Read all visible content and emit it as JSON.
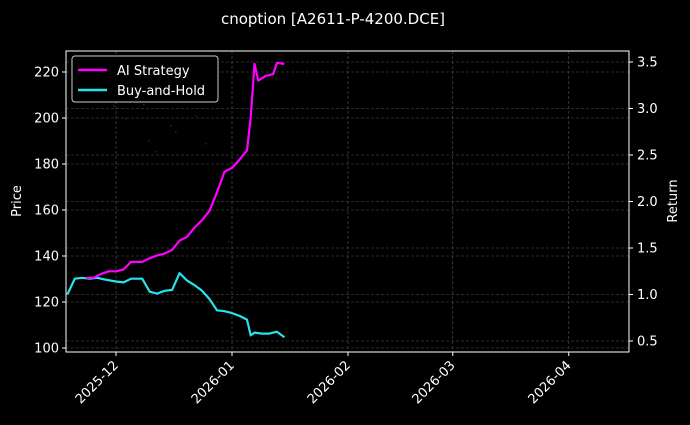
{
  "chart_data": {
    "type": "line",
    "title": "cnoption [A2611-P-4200.DCE]",
    "xlabel": "",
    "ylabel": "Price",
    "y2label": "Return",
    "ylim": [
      99,
      229
    ],
    "y2lim": [
      0.39,
      3.63
    ],
    "yticks": [
      100,
      120,
      140,
      160,
      180,
      200,
      220
    ],
    "y2ticks": [
      0.5,
      1.0,
      1.5,
      2.0,
      2.5,
      3.0,
      3.5
    ],
    "y2tick_labels": [
      "0.5",
      "1.0",
      "1.5",
      "2.0",
      "2.5",
      "3.0",
      "3.5"
    ],
    "xtick_labels": [
      "2025-12",
      "2026-01",
      "2026-02",
      "2026-03",
      "2026-04"
    ],
    "grid": true,
    "legend_position": "upper left",
    "series": [
      {
        "name": "AI Strategy",
        "axis": "right",
        "color": "#ff00ff",
        "x": [
          "2025-11-23",
          "2025-11-25",
          "2025-11-27",
          "2025-11-29",
          "2025-12-01",
          "2025-12-03",
          "2025-12-05",
          "2025-12-08",
          "2025-12-10",
          "2025-12-12",
          "2025-12-14",
          "2025-12-16",
          "2025-12-18",
          "2025-12-20",
          "2025-12-22",
          "2025-12-24",
          "2025-12-26",
          "2025-12-28",
          "2025-12-30",
          "2026-01-01",
          "2026-01-03",
          "2026-01-05",
          "2026-01-06",
          "2026-01-07",
          "2026-01-08",
          "2026-01-10",
          "2026-01-12",
          "2026-01-13",
          "2026-01-15"
        ],
        "values": [
          1.18,
          1.18,
          1.22,
          1.25,
          1.25,
          1.27,
          1.35,
          1.35,
          1.39,
          1.42,
          1.44,
          1.48,
          1.58,
          1.62,
          1.72,
          1.8,
          1.9,
          2.1,
          2.32,
          2.36,
          2.45,
          2.55,
          2.9,
          3.48,
          3.3,
          3.35,
          3.37,
          3.49,
          3.48
        ]
      },
      {
        "name": "Buy-and-Hold",
        "axis": "right",
        "color": "#22e5ee",
        "x": [
          "2025-11-18",
          "2025-11-20",
          "2025-11-22",
          "2025-11-24",
          "2025-11-26",
          "2025-11-28",
          "2025-12-01",
          "2025-12-03",
          "2025-12-05",
          "2025-12-08",
          "2025-12-10",
          "2025-12-12",
          "2025-12-14",
          "2025-12-16",
          "2025-12-18",
          "2025-12-20",
          "2025-12-22",
          "2025-12-24",
          "2025-12-26",
          "2025-12-28",
          "2025-12-30",
          "2026-01-01",
          "2026-01-03",
          "2026-01-05",
          "2026-01-06",
          "2026-01-07",
          "2026-01-09",
          "2026-01-11",
          "2026-01-13",
          "2026-01-15"
        ],
        "values": [
          1.0,
          1.17,
          1.18,
          1.17,
          1.18,
          1.16,
          1.14,
          1.13,
          1.17,
          1.17,
          1.03,
          1.01,
          1.04,
          1.05,
          1.23,
          1.15,
          1.1,
          1.04,
          0.95,
          0.83,
          0.82,
          0.8,
          0.77,
          0.73,
          0.56,
          0.59,
          0.58,
          0.58,
          0.6,
          0.54
        ]
      }
    ]
  }
}
